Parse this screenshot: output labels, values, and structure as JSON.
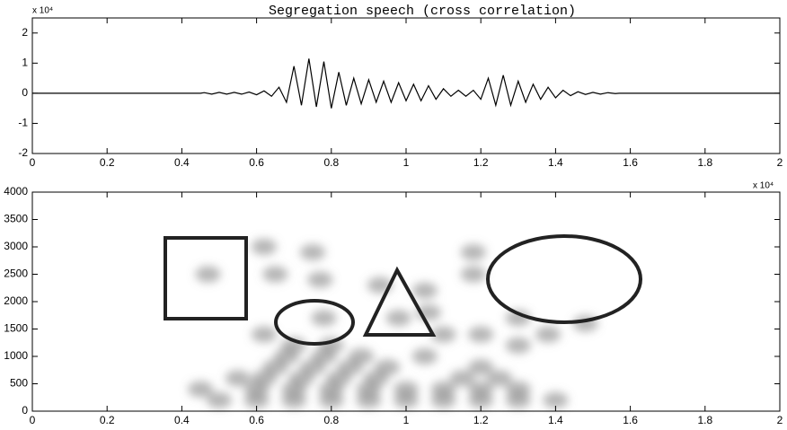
{
  "chart_data": [
    {
      "type": "line",
      "title": "Segregation speech (cross correlation)",
      "x_exponent": "x 10⁴",
      "y_exponent": "x 10⁴",
      "color": "#000000",
      "x": [
        0,
        0.45,
        0.46,
        0.48,
        0.5,
        0.52,
        0.54,
        0.56,
        0.58,
        0.6,
        0.62,
        0.64,
        0.66,
        0.68,
        0.7,
        0.72,
        0.74,
        0.76,
        0.78,
        0.8,
        0.82,
        0.84,
        0.86,
        0.88,
        0.9,
        0.92,
        0.94,
        0.96,
        0.98,
        1.0,
        1.02,
        1.04,
        1.06,
        1.08,
        1.1,
        1.12,
        1.14,
        1.16,
        1.18,
        1.2,
        1.22,
        1.24,
        1.26,
        1.28,
        1.3,
        1.32,
        1.34,
        1.36,
        1.38,
        1.4,
        1.42,
        1.44,
        1.46,
        1.48,
        1.5,
        1.52,
        1.54,
        1.56,
        1.57,
        2
      ],
      "values": [
        0,
        0,
        0.02,
        -0.03,
        0.03,
        -0.03,
        0.03,
        -0.03,
        0.04,
        -0.05,
        0.08,
        -0.1,
        0.2,
        -0.3,
        0.9,
        -0.4,
        1.15,
        -0.45,
        1.05,
        -0.5,
        0.7,
        -0.4,
        0.5,
        -0.35,
        0.45,
        -0.3,
        0.4,
        -0.3,
        0.35,
        -0.25,
        0.3,
        -0.25,
        0.25,
        -0.2,
        0.15,
        -0.1,
        0.1,
        -0.1,
        0.1,
        -0.2,
        0.5,
        -0.4,
        0.6,
        -0.4,
        0.4,
        -0.3,
        0.3,
        -0.2,
        0.2,
        -0.15,
        0.1,
        -0.08,
        0.05,
        -0.04,
        0.03,
        -0.03,
        0.02,
        -0.01,
        0,
        0
      ],
      "xlim": [
        0,
        2
      ],
      "xticks": [
        0,
        0.2,
        0.4,
        0.6,
        0.8,
        1,
        1.2,
        1.4,
        1.6,
        1.8,
        2
      ],
      "ylim": [
        -2,
        2.5
      ],
      "yticks": [
        -2,
        -1,
        0,
        1,
        2
      ]
    },
    {
      "type": "scatter",
      "x_exponent": "x 10⁴",
      "color": "#7a7a7a",
      "x": [
        0.47,
        0.62,
        0.65,
        0.75,
        0.77,
        0.78,
        0.93,
        0.98,
        1.05,
        1.06,
        1.1,
        1.18,
        1.18,
        1.2,
        1.3,
        1.3,
        1.38,
        1.48,
        0.5,
        0.6,
        0.7,
        0.8,
        0.9,
        1.0,
        1.1,
        1.2,
        1.3,
        1.4,
        0.6,
        0.7,
        0.8,
        0.9,
        1.0,
        1.1,
        1.2,
        1.3,
        0.62,
        0.72,
        0.82,
        0.92,
        1.15,
        1.25,
        0.65,
        0.75,
        0.85,
        0.95,
        1.2,
        0.68,
        0.78,
        0.88,
        1.05,
        0.7,
        0.8,
        0.62,
        0.55,
        0.45
      ],
      "values": [
        2500,
        3000,
        2500,
        2900,
        2400,
        1700,
        2300,
        1700,
        2200,
        1800,
        1400,
        2900,
        2500,
        1400,
        1700,
        1200,
        1400,
        1600,
        200,
        200,
        200,
        200,
        200,
        200,
        200,
        200,
        200,
        200,
        400,
        400,
        400,
        400,
        400,
        400,
        400,
        400,
        600,
        600,
        600,
        600,
        600,
        600,
        800,
        800,
        800,
        800,
        800,
        1000,
        1000,
        1000,
        1000,
        1200,
        1200,
        1400,
        600,
        400
      ],
      "xlim": [
        0,
        2
      ],
      "xticks": [
        0,
        0.2,
        0.4,
        0.6,
        0.8,
        1,
        1.2,
        1.4,
        1.6,
        1.8,
        2
      ],
      "ylim": [
        0,
        4000
      ],
      "yticks": [
        0,
        500,
        1000,
        1500,
        2000,
        2500,
        3000,
        3500,
        4000
      ]
    }
  ]
}
